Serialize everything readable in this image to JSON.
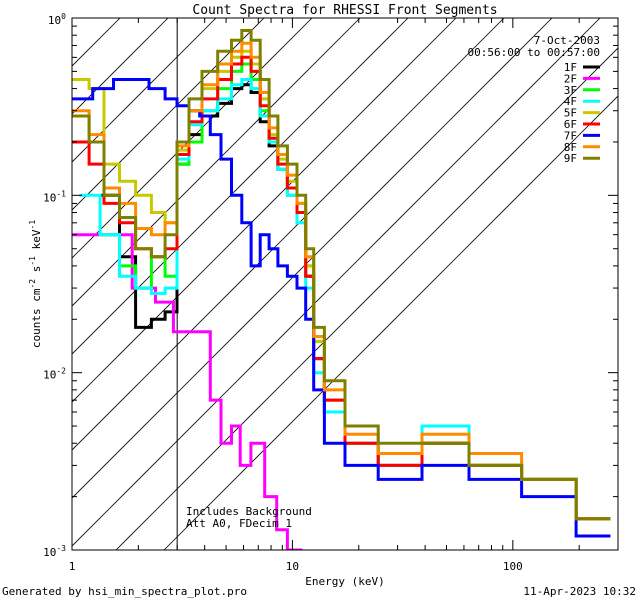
{
  "chart_data": {
    "type": "line",
    "title": "Count Spectra for RHESSI Front Segments",
    "xlabel": "Energy (keV)",
    "ylabel_parts": [
      "counts cm",
      "-2",
      " s",
      "-1",
      " keV",
      "-1"
    ],
    "x_scale": "log",
    "y_scale": "log",
    "xlim": [
      1,
      300
    ],
    "ylim": [
      0.001,
      1
    ],
    "x_ticks": [
      {
        "value": 1,
        "label": "1"
      },
      {
        "value": 10,
        "label": "10"
      },
      {
        "value": 100,
        "label": "100"
      }
    ],
    "y_ticks": [
      {
        "exp": 0,
        "label_base": "10",
        "label_exp": "0"
      },
      {
        "exp": -1,
        "label_base": "10",
        "label_exp": "-1"
      },
      {
        "exp": -2,
        "label_base": "10",
        "label_exp": "-2"
      },
      {
        "exp": -3,
        "label_base": "10",
        "label_exp": "-3"
      }
    ],
    "hatched_region": {
      "x_from": 1,
      "x_to": 3
    },
    "annotation_date": "7-Oct-2003",
    "annotation_time": "00:56:00 to 00:57:00",
    "note_lines": [
      "Includes Background",
      "Att A0, FDecim 1"
    ],
    "series": [
      {
        "name": "1F",
        "color": "#000000",
        "points": [
          [
            1.5,
            0.1
          ],
          [
            1.8,
            0.045
          ],
          [
            2.1,
            0.018
          ],
          [
            2.5,
            0.02
          ],
          [
            2.8,
            0.022
          ],
          [
            3.2,
            0.15
          ],
          [
            3.6,
            0.22
          ],
          [
            4.2,
            0.28
          ],
          [
            5.0,
            0.33
          ],
          [
            5.6,
            0.4
          ],
          [
            6.2,
            0.42
          ],
          [
            6.8,
            0.38
          ],
          [
            7.5,
            0.26
          ],
          [
            8.2,
            0.19
          ],
          [
            9.0,
            0.14
          ],
          [
            10.0,
            0.11
          ],
          [
            11.0,
            0.08
          ],
          [
            12.0,
            0.035
          ],
          [
            13.0,
            0.012
          ],
          [
            15.0,
            0.006
          ],
          [
            20.0,
            0.004
          ],
          [
            30.0,
            0.003
          ],
          [
            50.0,
            0.004
          ],
          [
            80.0,
            0.003
          ],
          [
            150.0,
            0.0025
          ],
          [
            250.0,
            0.0015
          ]
        ]
      },
      {
        "name": "2F",
        "color": "#ff00ff",
        "points": [
          [
            1.1,
            0.06
          ],
          [
            1.6,
            0.06
          ],
          [
            2.2,
            0.03
          ],
          [
            2.6,
            0.025
          ],
          [
            3.2,
            0.017
          ],
          [
            4.0,
            0.017
          ],
          [
            4.5,
            0.007
          ],
          [
            5.0,
            0.004
          ],
          [
            5.6,
            0.005
          ],
          [
            6.0,
            0.003
          ],
          [
            7.0,
            0.004
          ],
          [
            8.0,
            0.002
          ],
          [
            9.0,
            0.0013
          ],
          [
            10.0,
            0.001
          ]
        ]
      },
      {
        "name": "3F",
        "color": "#00ff00",
        "points": [
          [
            1.5,
            0.06
          ],
          [
            1.8,
            0.04
          ],
          [
            2.1,
            0.03
          ],
          [
            2.5,
            0.045
          ],
          [
            2.8,
            0.035
          ],
          [
            3.2,
            0.15
          ],
          [
            3.6,
            0.2
          ],
          [
            4.2,
            0.3
          ],
          [
            5.0,
            0.4
          ],
          [
            5.6,
            0.5
          ],
          [
            6.2,
            0.55
          ],
          [
            6.8,
            0.45
          ],
          [
            7.5,
            0.3
          ],
          [
            8.2,
            0.2
          ],
          [
            9.0,
            0.14
          ],
          [
            10.0,
            0.1
          ],
          [
            11.0,
            0.08
          ],
          [
            12.0,
            0.04
          ],
          [
            13.0,
            0.015
          ],
          [
            15.0,
            0.007
          ],
          [
            20.0,
            0.004
          ],
          [
            30.0,
            0.0035
          ],
          [
            50.0,
            0.004
          ],
          [
            80.0,
            0.003
          ],
          [
            150.0,
            0.0025
          ],
          [
            250.0,
            0.0015
          ]
        ]
      },
      {
        "name": "4F",
        "color": "#00ffff",
        "points": [
          [
            1.2,
            0.1
          ],
          [
            1.5,
            0.06
          ],
          [
            1.8,
            0.035
          ],
          [
            2.1,
            0.03
          ],
          [
            2.5,
            0.028
          ],
          [
            2.8,
            0.03
          ],
          [
            3.2,
            0.16
          ],
          [
            3.6,
            0.25
          ],
          [
            4.2,
            0.3
          ],
          [
            5.0,
            0.35
          ],
          [
            5.6,
            0.42
          ],
          [
            6.2,
            0.45
          ],
          [
            6.8,
            0.4
          ],
          [
            7.5,
            0.28
          ],
          [
            8.2,
            0.2
          ],
          [
            9.0,
            0.14
          ],
          [
            10.0,
            0.1
          ],
          [
            11.0,
            0.07
          ],
          [
            12.0,
            0.03
          ],
          [
            13.0,
            0.01
          ],
          [
            15.0,
            0.006
          ],
          [
            20.0,
            0.004
          ],
          [
            30.0,
            0.003
          ],
          [
            50.0,
            0.005
          ],
          [
            80.0,
            0.003
          ],
          [
            150.0,
            0.0025
          ],
          [
            250.0,
            0.0015
          ]
        ]
      },
      {
        "name": "5F",
        "color": "#c8c800",
        "points": [
          [
            1.1,
            0.45
          ],
          [
            1.3,
            0.4
          ],
          [
            1.5,
            0.15
          ],
          [
            1.8,
            0.12
          ],
          [
            2.1,
            0.1
          ],
          [
            2.5,
            0.08
          ],
          [
            2.8,
            0.07
          ],
          [
            3.2,
            0.18
          ],
          [
            3.6,
            0.3
          ],
          [
            4.2,
            0.4
          ],
          [
            5.0,
            0.5
          ],
          [
            5.6,
            0.6
          ],
          [
            6.2,
            0.65
          ],
          [
            6.8,
            0.55
          ],
          [
            7.5,
            0.35
          ],
          [
            8.2,
            0.22
          ],
          [
            9.0,
            0.16
          ],
          [
            10.0,
            0.12
          ],
          [
            11.0,
            0.09
          ],
          [
            12.0,
            0.04
          ],
          [
            13.0,
            0.015
          ],
          [
            15.0,
            0.007
          ],
          [
            20.0,
            0.004
          ],
          [
            30.0,
            0.0035
          ],
          [
            50.0,
            0.004
          ],
          [
            80.0,
            0.003
          ],
          [
            150.0,
            0.0025
          ],
          [
            250.0,
            0.0015
          ]
        ]
      },
      {
        "name": "6F",
        "color": "#ff0000",
        "points": [
          [
            1.1,
            0.2
          ],
          [
            1.3,
            0.15
          ],
          [
            1.5,
            0.09
          ],
          [
            1.8,
            0.07
          ],
          [
            2.1,
            0.05
          ],
          [
            2.5,
            0.045
          ],
          [
            2.8,
            0.05
          ],
          [
            3.2,
            0.17
          ],
          [
            3.6,
            0.26
          ],
          [
            4.2,
            0.35
          ],
          [
            5.0,
            0.45
          ],
          [
            5.6,
            0.55
          ],
          [
            6.2,
            0.6
          ],
          [
            6.8,
            0.5
          ],
          [
            7.5,
            0.32
          ],
          [
            8.2,
            0.21
          ],
          [
            9.0,
            0.15
          ],
          [
            10.0,
            0.11
          ],
          [
            11.0,
            0.08
          ],
          [
            12.0,
            0.035
          ],
          [
            13.0,
            0.012
          ],
          [
            15.0,
            0.007
          ],
          [
            20.0,
            0.004
          ],
          [
            30.0,
            0.003
          ],
          [
            50.0,
            0.004
          ],
          [
            80.0,
            0.003
          ],
          [
            150.0,
            0.0025
          ],
          [
            250.0,
            0.0015
          ]
        ]
      },
      {
        "name": "7F",
        "color": "#0000ff",
        "points": [
          [
            1.1,
            0.35
          ],
          [
            1.4,
            0.4
          ],
          [
            1.7,
            0.45
          ],
          [
            2.0,
            0.45
          ],
          [
            2.5,
            0.4
          ],
          [
            2.8,
            0.35
          ],
          [
            3.2,
            0.32
          ],
          [
            3.6,
            0.3
          ],
          [
            4.0,
            0.28
          ],
          [
            4.5,
            0.22
          ],
          [
            5.0,
            0.16
          ],
          [
            5.6,
            0.1
          ],
          [
            6.2,
            0.07
          ],
          [
            6.8,
            0.04
          ],
          [
            7.5,
            0.06
          ],
          [
            8.2,
            0.05
          ],
          [
            9.0,
            0.04
          ],
          [
            10.0,
            0.035
          ],
          [
            11.0,
            0.03
          ],
          [
            12.0,
            0.02
          ],
          [
            13.0,
            0.008
          ],
          [
            15.0,
            0.004
          ],
          [
            20.0,
            0.003
          ],
          [
            30.0,
            0.0025
          ],
          [
            50.0,
            0.003
          ],
          [
            80.0,
            0.0025
          ],
          [
            150.0,
            0.002
          ],
          [
            250.0,
            0.0012
          ]
        ]
      },
      {
        "name": "8F",
        "color": "#ff8c00",
        "points": [
          [
            1.1,
            0.3
          ],
          [
            1.3,
            0.22
          ],
          [
            1.5,
            0.11
          ],
          [
            1.8,
            0.09
          ],
          [
            2.1,
            0.065
          ],
          [
            2.5,
            0.06
          ],
          [
            2.8,
            0.07
          ],
          [
            3.2,
            0.19
          ],
          [
            3.6,
            0.3
          ],
          [
            4.2,
            0.42
          ],
          [
            5.0,
            0.55
          ],
          [
            5.6,
            0.65
          ],
          [
            6.2,
            0.72
          ],
          [
            6.8,
            0.6
          ],
          [
            7.5,
            0.38
          ],
          [
            8.2,
            0.24
          ],
          [
            9.0,
            0.17
          ],
          [
            10.0,
            0.13
          ],
          [
            11.0,
            0.09
          ],
          [
            12.0,
            0.045
          ],
          [
            13.0,
            0.016
          ],
          [
            15.0,
            0.008
          ],
          [
            20.0,
            0.0045
          ],
          [
            30.0,
            0.0035
          ],
          [
            50.0,
            0.0045
          ],
          [
            80.0,
            0.0035
          ],
          [
            150.0,
            0.0025
          ],
          [
            250.0,
            0.0015
          ]
        ]
      },
      {
        "name": "9F",
        "color": "#808000",
        "points": [
          [
            1.1,
            0.28
          ],
          [
            1.3,
            0.2
          ],
          [
            1.5,
            0.1
          ],
          [
            1.8,
            0.075
          ],
          [
            2.1,
            0.05
          ],
          [
            2.5,
            0.045
          ],
          [
            2.8,
            0.06
          ],
          [
            3.2,
            0.2
          ],
          [
            3.6,
            0.35
          ],
          [
            4.2,
            0.5
          ],
          [
            5.0,
            0.65
          ],
          [
            5.6,
            0.75
          ],
          [
            6.2,
            0.85
          ],
          [
            6.8,
            0.75
          ],
          [
            7.5,
            0.45
          ],
          [
            8.2,
            0.28
          ],
          [
            9.0,
            0.19
          ],
          [
            10.0,
            0.15
          ],
          [
            11.0,
            0.1
          ],
          [
            12.0,
            0.05
          ],
          [
            13.0,
            0.018
          ],
          [
            15.0,
            0.009
          ],
          [
            20.0,
            0.005
          ],
          [
            30.0,
            0.004
          ],
          [
            50.0,
            0.004
          ],
          [
            80.0,
            0.003
          ],
          [
            150.0,
            0.0025
          ],
          [
            250.0,
            0.0015
          ]
        ]
      }
    ]
  },
  "footer": {
    "generated_by": "Generated by hsi_min_spectra_plot.pro",
    "timestamp": "11-Apr-2023 10:32"
  }
}
